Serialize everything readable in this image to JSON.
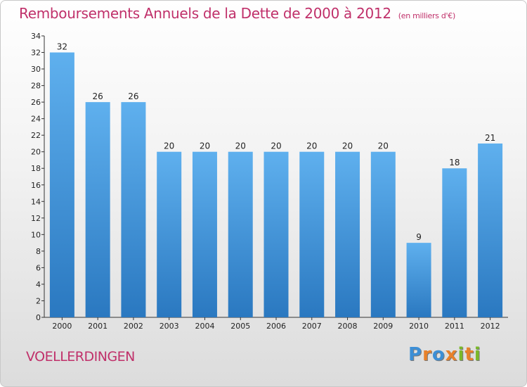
{
  "chart_data": {
    "type": "bar",
    "title": "Remboursements Annuels de la Dette de 2000 à 2012",
    "subtitle": "(en milliers d'€)",
    "categories": [
      "2000",
      "2001",
      "2002",
      "2003",
      "2004",
      "2005",
      "2006",
      "2007",
      "2008",
      "2009",
      "2010",
      "2011",
      "2012"
    ],
    "values": [
      32,
      26,
      26,
      20,
      20,
      20,
      20,
      20,
      20,
      20,
      9,
      18,
      21
    ],
    "xlabel": "",
    "ylabel": "",
    "ylim": [
      0,
      34
    ],
    "yticks": [
      0,
      2,
      4,
      6,
      8,
      10,
      12,
      14,
      16,
      18,
      20,
      22,
      24,
      26,
      28,
      30,
      32,
      34
    ],
    "grid": false,
    "bar_color": "#3d8fd6"
  },
  "footer": {
    "commune": "VOELLERDINGEN",
    "logo_letters": [
      "P",
      "r",
      "o",
      "x",
      "i",
      "t",
      "i"
    ],
    "logo_colors": [
      "#3d8fd6",
      "#e8812a",
      "#3d8fd6",
      "#e8812a",
      "#7ab929",
      "#e8812a",
      "#7ab929"
    ]
  }
}
